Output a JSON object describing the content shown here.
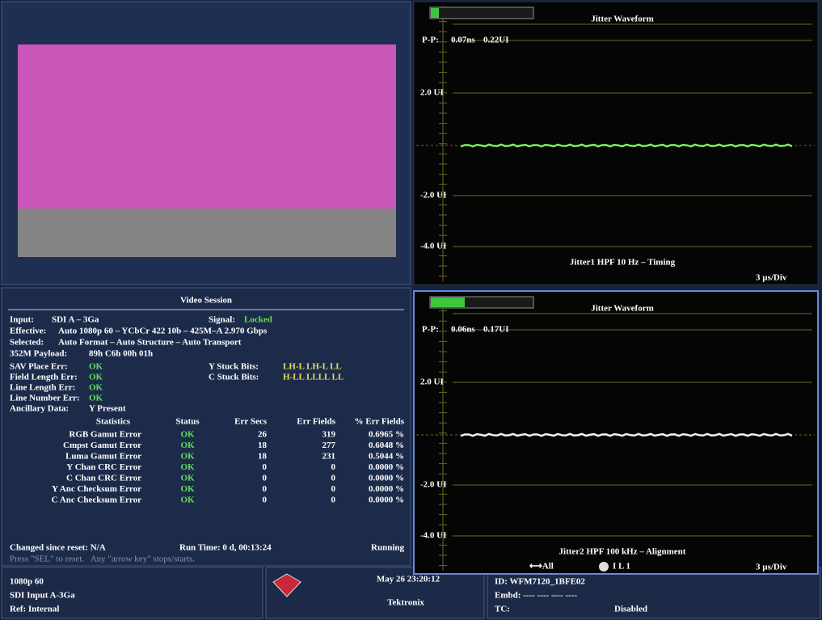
{
  "jitter_panels": [
    {
      "title": "Jitter Waveform",
      "pp_label": "P-P:",
      "pp_ns": "0.07ns",
      "pp_ui": "0.22UI",
      "axis_labels": [
        "2.0 UI",
        "-2.0 UI",
        "-4.0 UI"
      ],
      "caption": "Jitter1 HPF 10 Hz – Timing",
      "time_div": "3 µs/Div"
    },
    {
      "title": "Jitter Waveform",
      "pp_label": "P-P:",
      "pp_ns": "0.06ns",
      "pp_ui": "0.17UI",
      "axis_labels": [
        "2.0 UI",
        "-2.0 UI",
        "-4.0 UI"
      ],
      "caption": "Jitter2 HPF 100 kHz – Alignment",
      "time_div": "3 µs/Div",
      "footer_left": "⟷All",
      "footer_mid": "I L 1"
    }
  ],
  "video_session": {
    "title": "Video Session",
    "input_label": "Input:",
    "input_value": "SDI A – 3Ga",
    "signal_label": "Signal:",
    "signal_value": "Locked",
    "effective_label": "Effective:",
    "effective_value": "Auto 1080p 60 – YCbCr 422 10b – 425M–A 2.970 Gbps",
    "selected_label": "Selected:",
    "selected_value": "Auto Format – Auto Structure – Auto Transport",
    "payload_label": "352M Payload:",
    "payload_value": "89h C6h 00h 01h",
    "fields": [
      {
        "label": "SAV Place Err:",
        "value": "OK"
      },
      {
        "label": "Field Length Err:",
        "value": "OK"
      },
      {
        "label": "Line Length Err:",
        "value": "OK"
      },
      {
        "label": "Line Number Err:",
        "value": "OK"
      },
      {
        "label": "Ancillary Data:",
        "value": "Y Present"
      }
    ],
    "stuck_bits": [
      {
        "label": "Y Stuck Bits:",
        "value": "LH-L LH-L LL"
      },
      {
        "label": "C Stuck Bits:",
        "value": "H-LL LLLL LL"
      }
    ],
    "table": {
      "header": [
        "Statistics",
        "Status",
        "Err Secs",
        "Err Fields",
        "% Err Fields"
      ],
      "rows": [
        [
          "RGB Gamut Error",
          "OK",
          "26",
          "319",
          "0.6965 %"
        ],
        [
          "Cmpst Gamut Error",
          "OK",
          "18",
          "277",
          "0.6048 %"
        ],
        [
          "Luma Gamut Error",
          "OK",
          "18",
          "231",
          "0.5044 %"
        ],
        [
          "Y Chan CRC Error",
          "OK",
          "0",
          "0",
          "0.0000 %"
        ],
        [
          "C Chan CRC Error",
          "OK",
          "0",
          "0",
          "0.0000 %"
        ],
        [
          "Y Anc Checksum Error",
          "OK",
          "0",
          "0",
          "0.0000 %"
        ],
        [
          "C Anc Checksum Error",
          "OK",
          "0",
          "0",
          "0.0000 %"
        ]
      ]
    },
    "changed_since_reset": "Changed since reset: N/A",
    "run_time": "Run Time: 0 d, 00:13:24",
    "run_state": "Running",
    "hint": "Press \"SEL\" to reset.   Any \"arrow key\" stops/starts."
  },
  "status_bar": {
    "format": "1080p 60",
    "input": "SDI Input A-3Ga",
    "reference": "Ref: Internal",
    "datetime": "May 26 23:20:12",
    "brand": "Tektronix",
    "id": "ID: WFM7120_1BFE02",
    "embd": "Embd: ---- ---- ---- ----",
    "tc_label": "TC:",
    "tc_value": "Disabled"
  }
}
